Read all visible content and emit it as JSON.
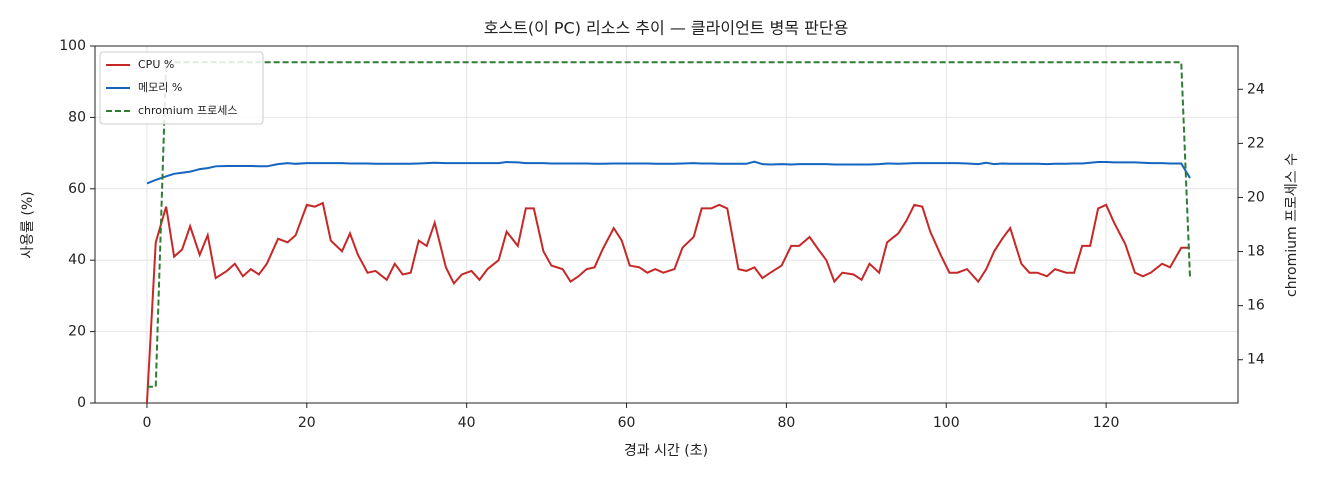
{
  "chart_data": {
    "type": "line",
    "title": "호스트(이 PC) 리소스 추이 — 클라이언트 병목 판단용",
    "x_label": "경과 시간 (초)",
    "y_label": "사용률 (%)",
    "y2_label": "chromium 프로세스 수",
    "x": [
      0,
      1.1,
      2.4,
      3.4,
      4.4,
      5.4,
      6.6,
      7.6,
      8.6,
      10,
      11,
      12,
      13,
      14,
      15,
      16.4,
      17.6,
      18.6,
      20,
      21,
      22,
      23,
      24.4,
      25.4,
      26.4,
      27.6,
      28.6,
      30,
      31,
      32,
      33,
      34,
      35,
      36,
      37.4,
      38.4,
      39.4,
      40.6,
      41.6,
      42.6,
      44,
      45,
      46.4,
      47.4,
      48.4,
      49.6,
      50.6,
      52,
      53,
      54,
      55,
      56,
      57,
      58.4,
      59.4,
      60.4,
      61.6,
      62.6,
      63.6,
      64.6,
      66,
      67,
      68.4,
      69.4,
      70.6,
      71.6,
      72.6,
      74,
      75,
      76,
      77,
      78,
      79.4,
      80.6,
      81.6,
      82.9,
      84,
      85,
      86,
      87,
      88.4,
      89.4,
      90.4,
      91.6,
      92.6,
      94,
      95,
      96,
      97,
      98,
      99.4,
      100.4,
      101.4,
      102.6,
      104,
      105,
      106,
      107,
      108,
      109.4,
      110.4,
      111.4,
      112.6,
      113.6,
      115,
      116,
      117,
      118,
      119,
      120,
      121,
      122.4,
      123.6,
      124.6,
      125.6,
      127,
      128,
      129.4,
      130.5
    ],
    "series": [
      {
        "name": "CPU %",
        "color": "#c62828",
        "dashed": false,
        "values": [
          0,
          45,
          55,
          41,
          43,
          49.5,
          41.5,
          47,
          35,
          37,
          39,
          35.5,
          37.5,
          36,
          39,
          46,
          45,
          47,
          55.5,
          55,
          56,
          45.5,
          42.5,
          47.5,
          41.5,
          36.5,
          37,
          34.5,
          39,
          36,
          36.5,
          45.5,
          44,
          50.5,
          38,
          33.5,
          36,
          37,
          34.5,
          37.5,
          40,
          48,
          44,
          54.5,
          54.5,
          42.5,
          38.5,
          37.5,
          34,
          35.5,
          37.5,
          38,
          43,
          49,
          45.5,
          38.5,
          38,
          36.5,
          37.5,
          36.5,
          37.5,
          43.5,
          46.5,
          54.5,
          54.5,
          55.5,
          54.5,
          37.5,
          37,
          38,
          35,
          36.5,
          38.5,
          44,
          44,
          46.5,
          43,
          40,
          34,
          36.5,
          36,
          34.5,
          39,
          36.5,
          45,
          47.5,
          51,
          55.5,
          55,
          48,
          41,
          36.5,
          36.5,
          37.5,
          34,
          37.5,
          42.5,
          46,
          49,
          39,
          36.5,
          36.5,
          35.5,
          37.5,
          36.5,
          36.5,
          44,
          44,
          54.5,
          55.5,
          50.5,
          44.5,
          36.5,
          35.5,
          36.5,
          39,
          38,
          43.5,
          43.5
        ]
      },
      {
        "name": "메모리 %",
        "color": "#1565c0",
        "dashed": false,
        "values": [
          61.5,
          62.5,
          63.5,
          64.2,
          64.5,
          64.8,
          65.5,
          65.8,
          66.3,
          66.4,
          66.4,
          66.4,
          66.4,
          66.3,
          66.3,
          66.9,
          67.2,
          67,
          67.2,
          67.2,
          67.2,
          67.2,
          67.2,
          67.1,
          67.1,
          67.1,
          67,
          67,
          67,
          67,
          67,
          67.1,
          67.2,
          67.3,
          67.2,
          67.2,
          67.2,
          67.2,
          67.2,
          67.2,
          67.2,
          67.5,
          67.4,
          67.2,
          67.2,
          67.2,
          67.1,
          67.1,
          67.1,
          67.1,
          67.1,
          67,
          67,
          67.1,
          67.1,
          67.1,
          67.1,
          67.1,
          67,
          67,
          67,
          67.1,
          67.2,
          67.1,
          67.1,
          67,
          67,
          67,
          67,
          67.6,
          66.9,
          66.8,
          66.9,
          66.8,
          66.9,
          66.9,
          66.9,
          66.9,
          66.8,
          66.8,
          66.8,
          66.8,
          66.8,
          66.9,
          67.1,
          67,
          67.1,
          67.2,
          67.2,
          67.2,
          67.2,
          67.2,
          67.2,
          67.1,
          66.9,
          67.3,
          66.9,
          67.1,
          67,
          67,
          67,
          67,
          66.9,
          67,
          67,
          67.1,
          67.1,
          67.3,
          67.5,
          67.5,
          67.4,
          67.4,
          67.4,
          67.3,
          67.2,
          67.2,
          67.1,
          67.1,
          63
        ]
      },
      {
        "name": "chromium 프로세스",
        "color": "#2e7d32",
        "dashed": true,
        "axis": "y2",
        "values": [
          13,
          13,
          25,
          25,
          25,
          25,
          25,
          25,
          25,
          25,
          25,
          25,
          25,
          25,
          25,
          25,
          25,
          25,
          25,
          25,
          25,
          25,
          25,
          25,
          25,
          25,
          25,
          25,
          25,
          25,
          25,
          25,
          25,
          25,
          25,
          25,
          25,
          25,
          25,
          25,
          25,
          25,
          25,
          25,
          25,
          25,
          25,
          25,
          25,
          25,
          25,
          25,
          25,
          25,
          25,
          25,
          25,
          25,
          25,
          25,
          25,
          25,
          25,
          25,
          25,
          25,
          25,
          25,
          25,
          25,
          25,
          25,
          25,
          25,
          25,
          25,
          25,
          25,
          25,
          25,
          25,
          25,
          25,
          25,
          25,
          25,
          25,
          25,
          25,
          25,
          25,
          25,
          25,
          25,
          25,
          25,
          25,
          25,
          25,
          25,
          25,
          25,
          25,
          25,
          25,
          25,
          25,
          25,
          25,
          25,
          25,
          25,
          25,
          25,
          25,
          25,
          25,
          25,
          17
        ]
      }
    ],
    "xlim": [
      -6.5,
      136.5
    ],
    "xticks": [
      0,
      20,
      40,
      60,
      80,
      100,
      120
    ],
    "ylim": [
      0,
      100
    ],
    "yticks": [
      0,
      20,
      40,
      60,
      80,
      100
    ],
    "y2lim": [
      12.4,
      25.6
    ],
    "y2ticks": [
      14,
      16,
      18,
      20,
      22,
      24
    ],
    "grid": true,
    "legend": "upper-left"
  }
}
